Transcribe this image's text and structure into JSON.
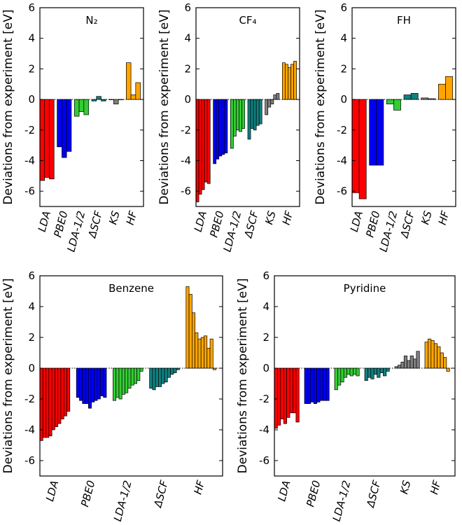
{
  "chart_data": [
    {
      "type": "bar",
      "title": "N₂",
      "ylabel": "Deviations from experiment [eV]",
      "categories": [
        "LDA",
        "PBE0",
        "LDA-1/2",
        "ΔSCF",
        "KS",
        "HF"
      ],
      "colors": [
        "#ff0000",
        "#0000ee",
        "#33cc33",
        "#108080",
        "#808080",
        "#ffa500"
      ],
      "values": [
        [
          -5.3,
          -5.1,
          -5.2
        ],
        [
          -3.1,
          -3.8,
          -3.4
        ],
        [
          -1.1,
          -0.8,
          -1.0
        ],
        [
          -0.1,
          0.2,
          -0.1
        ],
        [
          0.0,
          -0.3,
          0.0
        ],
        [
          2.4,
          0.3,
          1.1
        ]
      ],
      "ylim": [
        -7,
        6
      ],
      "yticks": [
        -6,
        -4,
        -2,
        0,
        2,
        4,
        6
      ]
    },
    {
      "type": "bar",
      "title": "CF₄",
      "ylabel": "Deviations from experiment [eV]",
      "categories": [
        "LDA",
        "PBE0",
        "LDA-1/2",
        "ΔSCF",
        "KS",
        "HF"
      ],
      "colors": [
        "#ff0000",
        "#0000ee",
        "#33cc33",
        "#108080",
        "#808080",
        "#ffa500"
      ],
      "values": [
        [
          -6.7,
          -6.2,
          -5.9,
          -5.4,
          -5.5
        ],
        [
          -4.2,
          -3.9,
          -3.7,
          -3.6,
          -3.5
        ],
        [
          -3.2,
          -2.4,
          -2.0,
          -2.1,
          -1.9
        ],
        [
          -2.6,
          -1.9,
          -2.0,
          -1.7,
          -1.6
        ],
        [
          -1.0,
          -0.5,
          -0.3,
          0.3,
          0.4
        ],
        [
          2.4,
          2.3,
          2.1,
          2.3,
          2.5
        ]
      ],
      "ylim": [
        -7,
        6
      ],
      "yticks": [
        -6,
        -4,
        -2,
        0,
        2,
        4,
        6
      ]
    },
    {
      "type": "bar",
      "title": "FH",
      "ylabel": "Deviations from experiment [eV]",
      "categories": [
        "LDA",
        "PBE0",
        "LDA-1/2",
        "ΔSCF",
        "KS",
        "HF"
      ],
      "colors": [
        "#ff0000",
        "#0000ee",
        "#33cc33",
        "#108080",
        "#808080",
        "#ffa500"
      ],
      "values": [
        [
          -6.1,
          -6.5
        ],
        [
          -4.3,
          -4.3
        ],
        [
          -0.3,
          -0.7
        ],
        [
          0.3,
          0.4
        ],
        [
          0.1,
          0.05
        ],
        [
          1.0,
          1.5
        ]
      ],
      "ylim": [
        -7,
        6
      ],
      "yticks": [
        -6,
        -4,
        -2,
        0,
        2,
        4,
        6
      ]
    },
    {
      "type": "bar",
      "title": "Benzene",
      "ylabel": "Deviations from experiment [eV]",
      "categories": [
        "LDA",
        "PBE0",
        "LDA-1/2",
        "ΔSCF",
        "HF"
      ],
      "colors": [
        "#ff0000",
        "#0000ee",
        "#33cc33",
        "#108080",
        "#ffa500"
      ],
      "values": [
        [
          -4.7,
          -4.5,
          -4.5,
          -4.4,
          -4.0,
          -3.8,
          -3.6,
          -3.3,
          -3.1,
          -2.8
        ],
        [
          -1.9,
          -2.1,
          -2.3,
          -2.3,
          -2.6,
          -2.2,
          -2.1,
          -2.0,
          -1.8,
          -1.9
        ],
        [
          -2.1,
          -1.9,
          -2.0,
          -1.7,
          -1.6,
          -1.3,
          -1.1,
          -1.0,
          -0.8,
          -0.2
        ],
        [
          -1.3,
          -1.4,
          -1.2,
          -1.2,
          -1.0,
          -0.9,
          -0.6,
          -0.4,
          -0.3,
          -0.1
        ],
        [
          5.3,
          4.8,
          3.6,
          2.3,
          1.9,
          2.0,
          2.1,
          1.3,
          1.9,
          -0.1
        ]
      ],
      "ylim": [
        -7,
        6
      ],
      "yticks": [
        -6,
        -4,
        -2,
        0,
        2,
        4,
        6
      ]
    },
    {
      "type": "bar",
      "title": "Pyridine",
      "ylabel": "Deviations from experiment [eV]",
      "categories": [
        "LDA",
        "PBE0",
        "LDA-1/2",
        "ΔSCF",
        "KS",
        "HF"
      ],
      "colors": [
        "#ff0000",
        "#0000ee",
        "#33cc33",
        "#108080",
        "#808080",
        "#ffa500"
      ],
      "values": [
        [
          -3.9,
          -3.7,
          -3.3,
          -3.6,
          -3.2,
          -2.9,
          -2.9,
          -3.5
        ],
        [
          -2.3,
          -2.3,
          -2.2,
          -2.3,
          -2.2,
          -2.1,
          -2.1,
          -2.1
        ],
        [
          -1.4,
          -1.1,
          -0.9,
          -0.6,
          -0.4,
          -0.5,
          -0.4,
          -0.5
        ],
        [
          -0.8,
          -0.6,
          -0.7,
          -0.4,
          -0.6,
          -0.3,
          -0.5,
          -0.2
        ],
        [
          0.1,
          0.2,
          0.4,
          0.8,
          0.5,
          0.8,
          0.6,
          1.1
        ],
        [
          1.7,
          1.9,
          1.8,
          1.6,
          1.4,
          1.0,
          0.7,
          -0.2
        ]
      ],
      "ylim": [
        -7,
        6
      ],
      "yticks": [
        -6,
        -4,
        -2,
        0,
        2,
        4,
        6
      ]
    }
  ]
}
